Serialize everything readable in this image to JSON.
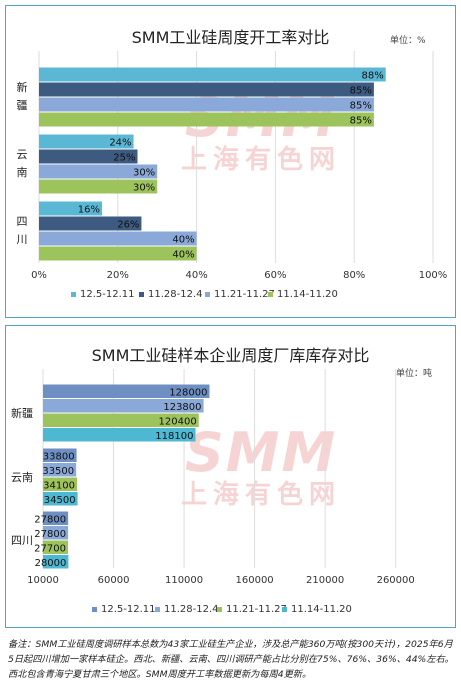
{
  "note": "备注：SMM工业硅周度调研样本总数为43家工业硅生产企业，涉及总产能360万吨(按300天计)，2025年6月5日起四川增加一家样本硅企。西北、新疆、云南、四川调研产能占比分别在75%、76%、36%、44%左右。西北包含青海宁夏甘肃三个地区。SMM周度开工率数据更新为每周4更新。",
  "watermark": {
    "brand": "SMM",
    "cn": "上海有色网"
  },
  "charts": [
    {
      "unit_label": "单位：%",
      "chart_data": {
        "type": "bar",
        "orientation": "horizontal",
        "title": "SMM工业硅周度开工率对比",
        "categories": [
          "新疆",
          "云南",
          "四川"
        ],
        "series": [
          {
            "name": "12.5-12.11",
            "values": [
              88,
              24,
              16
            ],
            "labels": [
              "88%",
              "24%",
              "16%"
            ]
          },
          {
            "name": "11.28-12.4",
            "values": [
              85,
              25,
              26
            ],
            "labels": [
              "85%",
              "25%",
              "26%"
            ]
          },
          {
            "name": "11.21-11.27",
            "values": [
              85,
              30,
              40
            ],
            "labels": [
              "85%",
              "30%",
              "40%"
            ]
          },
          {
            "name": "11.14-11.20",
            "values": [
              85,
              30,
              40
            ],
            "labels": [
              "85%",
              "30%",
              "40%"
            ]
          }
        ],
        "xlim": [
          0,
          100
        ],
        "xticks": [
          0,
          20,
          40,
          60,
          80,
          100
        ],
        "xtick_labels": [
          "0%",
          "20%",
          "40%",
          "60%",
          "80%",
          "100%"
        ],
        "grid": true,
        "legend": "bottom",
        "colors": [
          "#5bb8d5",
          "#3d5a80",
          "#8aa8d8",
          "#9cc35c"
        ]
      }
    },
    {
      "unit_label": "单位：吨",
      "chart_data": {
        "type": "bar",
        "orientation": "horizontal",
        "title": "SMM工业硅样本企业周度厂库库存对比",
        "categories": [
          "新疆",
          "云南",
          "四川"
        ],
        "series": [
          {
            "name": "12.5-12.11",
            "values": [
              128000,
              33800,
              27800
            ],
            "labels": [
              "128000",
              "33800",
              "27800"
            ]
          },
          {
            "name": "11.28-12.4",
            "values": [
              123800,
              33500,
              27800
            ],
            "labels": [
              "123800",
              "33500",
              "27800"
            ]
          },
          {
            "name": "11.21-11.27",
            "values": [
              120400,
              34100,
              27700
            ],
            "labels": [
              "120400",
              "34100",
              "27700"
            ]
          },
          {
            "name": "11.14-11.20",
            "values": [
              118100,
              34500,
              28000
            ],
            "labels": [
              "118100",
              "34500",
              "28000"
            ]
          }
        ],
        "xlim": [
          10000,
          290000
        ],
        "xticks": [
          10000,
          60000,
          110000,
          160000,
          210000,
          260000
        ],
        "xtick_labels": [
          "10000",
          "60000",
          "110000",
          "160000",
          "210000",
          "260000"
        ],
        "grid": true,
        "legend": "bottom",
        "colors": [
          "#6e8fc2",
          "#8aa8d8",
          "#9cc35c",
          "#4db8d2"
        ]
      }
    }
  ]
}
